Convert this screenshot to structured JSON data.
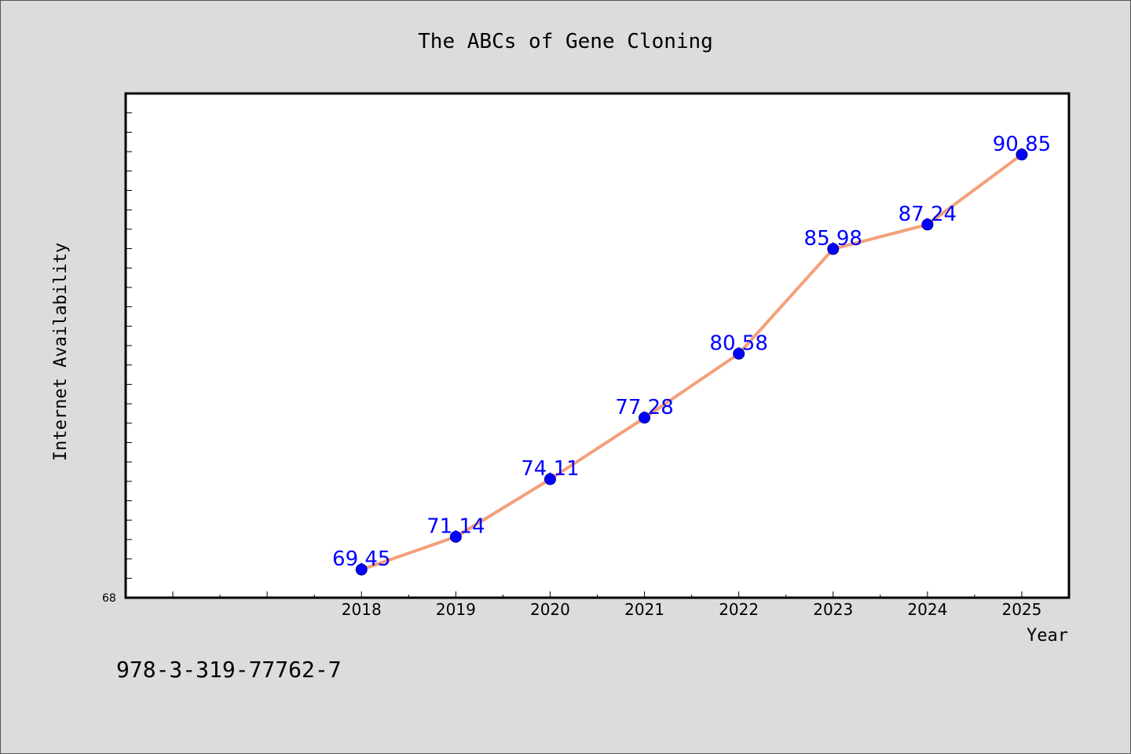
{
  "figure": {
    "isbn": "978-3-319-77762-7"
  },
  "chart_data": {
    "type": "line",
    "title": "The ABCs of Gene Cloning",
    "xlabel": "Year",
    "ylabel": "Internet Availability",
    "x": [
      "2018",
      "2019",
      "2020",
      "2021",
      "2022",
      "2023",
      "2024",
      "2025"
    ],
    "series": [
      {
        "values": [
          69.45,
          71.14,
          74.11,
          77.28,
          80.58,
          85.98,
          87.24,
          90.85
        ],
        "labels": [
          "69.45",
          "71.14",
          "74.11",
          "77.28",
          "80.58",
          "85.98",
          "87.24",
          "90.85"
        ]
      }
    ],
    "xlim": [
      2015.5,
      2025.5
    ],
    "ylim": [
      68,
      94
    ],
    "y_tick_labels_shown": [
      "68"
    ],
    "grid": false,
    "legend": "none",
    "colors": {
      "line": "#f4a07a",
      "marker": "#0000ff",
      "data_label": "#0000ff",
      "background": "#dcdcdc",
      "plot_area": "#ffffff"
    }
  }
}
